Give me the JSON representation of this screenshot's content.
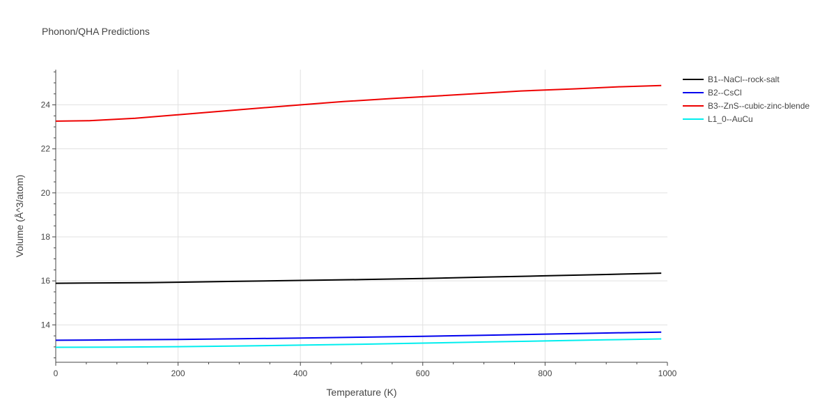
{
  "chart_data": {
    "type": "line",
    "title": "Phonon/QHA Predictions",
    "xlabel": "Temperature (K)",
    "ylabel": "Volume (Å^3/atom)",
    "xlim": [
      0,
      1000
    ],
    "ylim": [
      12.3,
      25.6
    ],
    "xticks": [
      0,
      200,
      400,
      600,
      800,
      1000
    ],
    "yticks": [
      14,
      16,
      18,
      20,
      22,
      24
    ],
    "grid": true,
    "legend_position": "top-right",
    "series": [
      {
        "name": "B1--NaCl--rock-salt",
        "color": "#000000",
        "x": [
          0,
          50,
          100,
          150,
          200,
          300,
          400,
          500,
          600,
          700,
          800,
          900,
          990
        ],
        "y": [
          15.89,
          15.9,
          15.91,
          15.92,
          15.94,
          15.98,
          16.02,
          16.06,
          16.11,
          16.17,
          16.23,
          16.29,
          16.35
        ]
      },
      {
        "name": "B2--CsCl",
        "color": "#0000ee",
        "x": [
          0,
          100,
          200,
          300,
          400,
          500,
          600,
          700,
          800,
          900,
          990
        ],
        "y": [
          13.3,
          13.32,
          13.34,
          13.37,
          13.4,
          13.44,
          13.48,
          13.53,
          13.58,
          13.63,
          13.67
        ]
      },
      {
        "name": "B3--ZnS--cubic-zinc-blende",
        "color": "#ee0000",
        "x": [
          0,
          55,
          130,
          200,
          300,
          400,
          470,
          550,
          620,
          700,
          760,
          850,
          920,
          990
        ],
        "y": [
          23.26,
          23.28,
          23.39,
          23.55,
          23.78,
          24.0,
          24.15,
          24.29,
          24.4,
          24.53,
          24.63,
          24.73,
          24.82,
          24.88
        ]
      },
      {
        "name": "L1_0--AuCu",
        "color": "#00eeee",
        "x": [
          0,
          100,
          200,
          300,
          400,
          500,
          600,
          700,
          800,
          900,
          990
        ],
        "y": [
          12.98,
          12.99,
          13.01,
          13.04,
          13.08,
          13.12,
          13.17,
          13.22,
          13.27,
          13.32,
          13.36
        ]
      }
    ]
  }
}
